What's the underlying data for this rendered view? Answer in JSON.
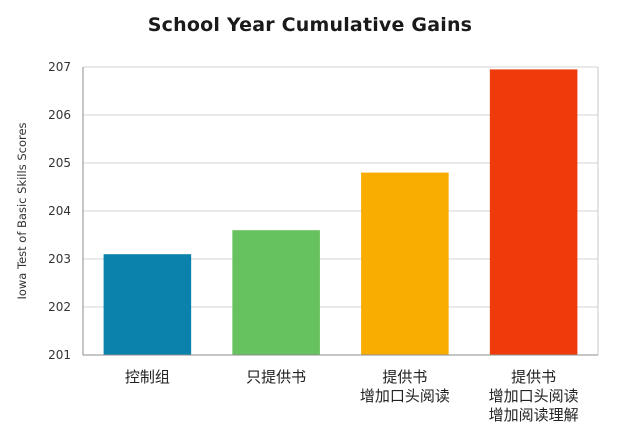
{
  "chart_data": {
    "type": "bar",
    "title": "School Year Cumulative Gains",
    "xlabel": "",
    "ylabel": "Iowa Test of Basic Skills Scores",
    "ylim": [
      201,
      207
    ],
    "yticks": [
      201,
      202,
      203,
      204,
      205,
      206,
      207
    ],
    "grid": true,
    "categories": [
      [
        "控制组"
      ],
      [
        "只提供书"
      ],
      [
        "提供书",
        "增加口头阅读"
      ],
      [
        "提供书",
        "增加口头阅读",
        "增加阅读理解"
      ]
    ],
    "values": [
      203.1,
      203.6,
      204.8,
      206.95
    ],
    "colors": [
      "#0a82ab",
      "#66c25e",
      "#f8ad00",
      "#ef3a0c"
    ]
  }
}
